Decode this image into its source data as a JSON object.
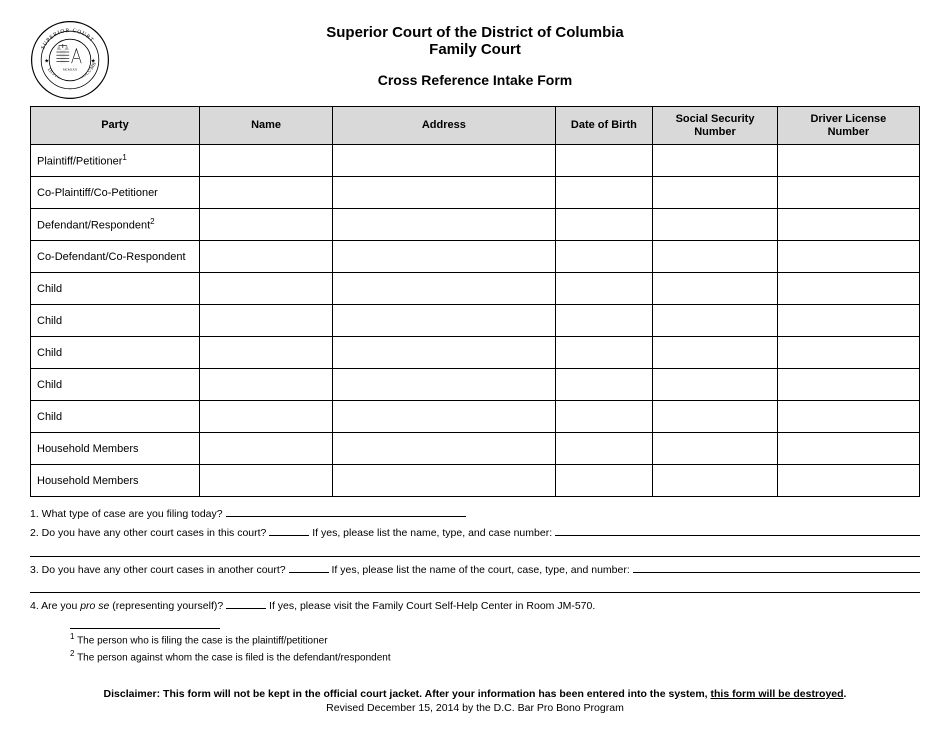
{
  "header": {
    "org_line1": "Superior Court of the District of Columbia",
    "org_line2": "Family Court",
    "form_title": "Cross Reference Intake Form",
    "seal": {
      "outer_top": "SUPERIOR",
      "outer_top2": "COURT",
      "outer_bottom": "DISTRICT OF COLUMBIA",
      "ring_color": "#000000",
      "fill_color": "#ffffff"
    }
  },
  "table": {
    "columns": [
      {
        "label": "Party",
        "width": "19%"
      },
      {
        "label": "Name",
        "width": "15%"
      },
      {
        "label": "Address",
        "width": "25%"
      },
      {
        "label": "Date of Birth",
        "width": "11%"
      },
      {
        "label": "Social Security\nNumber",
        "width": "14%"
      },
      {
        "label": "Driver License\nNumber",
        "width": "16%"
      }
    ],
    "rows": [
      {
        "party": "Plaintiff/Petitioner",
        "sup": "1"
      },
      {
        "party": "Co-Plaintiff/Co-Petitioner",
        "sup": ""
      },
      {
        "party": "Defendant/Respondent",
        "sup": "2"
      },
      {
        "party": "Co-Defendant/Co-Respondent",
        "sup": ""
      },
      {
        "party": "Child",
        "sup": ""
      },
      {
        "party": "Child",
        "sup": ""
      },
      {
        "party": "Child",
        "sup": ""
      },
      {
        "party": "Child",
        "sup": ""
      },
      {
        "party": "Child",
        "sup": ""
      },
      {
        "party": "Household Members",
        "sup": ""
      },
      {
        "party": "Household Members",
        "sup": ""
      }
    ],
    "header_bg": "#d9d9d9",
    "border_color": "#000000"
  },
  "questions": {
    "q1": "1.  What type of case are you filing today?",
    "q2_lead": "2.  Do you have any other court cases in this court?",
    "q2_tail": "If yes, please list the name, type, and case number:",
    "q3_lead": "3.  Do you have any other court cases in another court?",
    "q3_tail": "If yes, please list the name of the court, case, type, and number:",
    "q4_lead": "4.  Are you ",
    "q4_italic": "pro se",
    "q4_after": " (representing yourself)?",
    "q4_tail": "If yes, please visit the Family Court Self-Help Center in Room JM-570."
  },
  "footnotes": {
    "f1": "The person who is filing the case is the plaintiff/petitioner",
    "f2": "The person against whom the case is filed is the defendant/respondent"
  },
  "disclaimer": {
    "label": "Disclaimer:",
    "text_before": "  This form will not be kept in the official court jacket.  After your information has been entered into the system, ",
    "underlined": "this form will be destroyed",
    "period": "."
  },
  "revised": "Revised December 15, 2014 by the D.C. Bar Pro Bono Program"
}
